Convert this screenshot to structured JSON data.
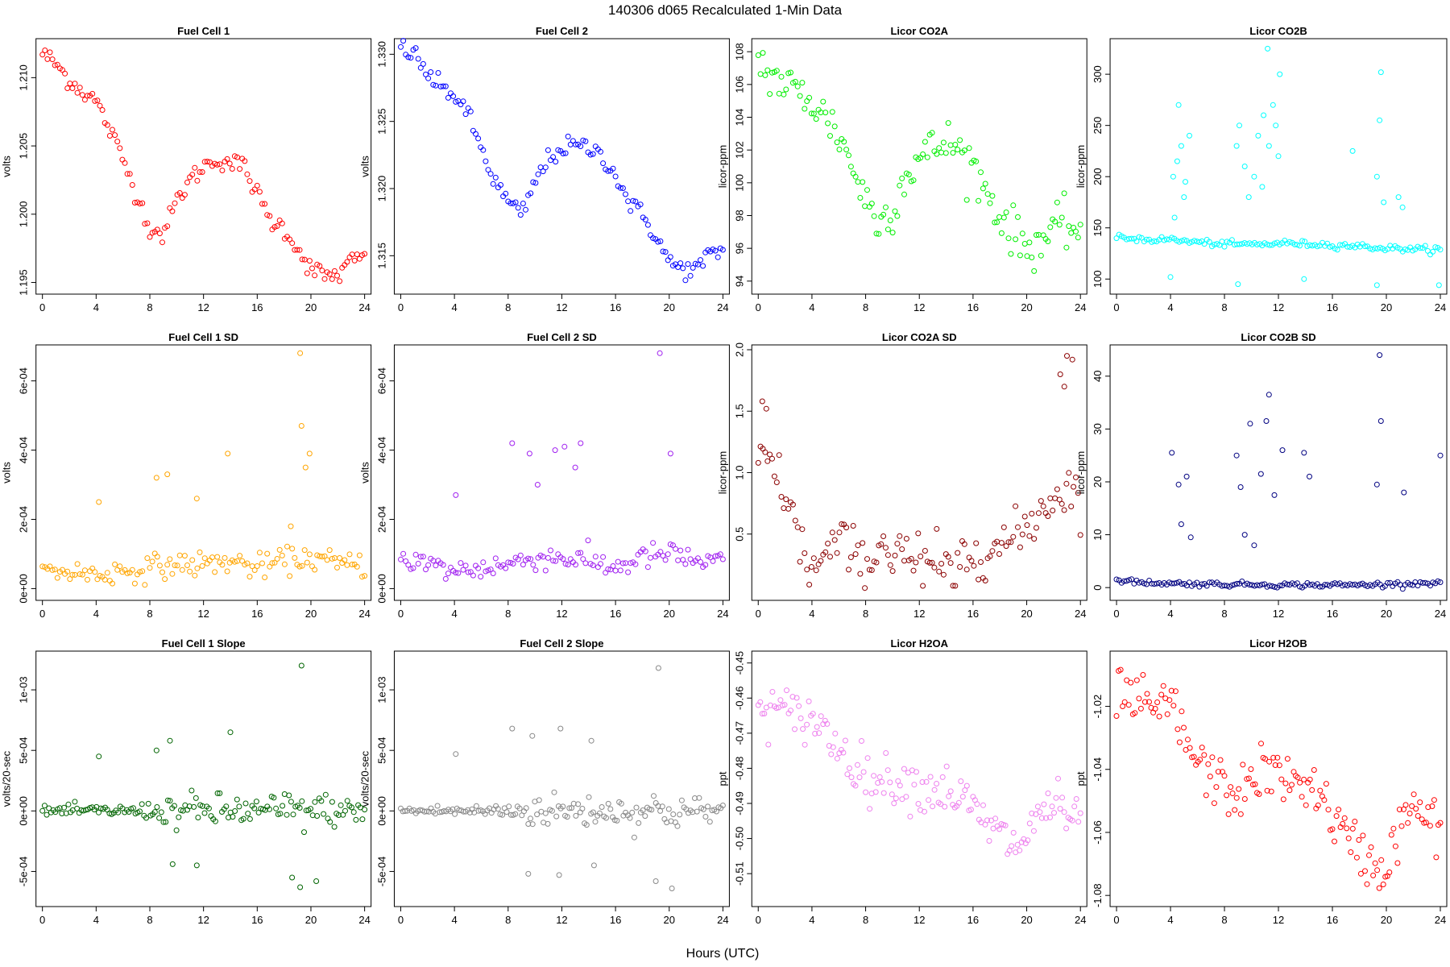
{
  "figure": {
    "title": "140306   d065   Recalculated 1-Min Data",
    "xlabel": "Hours (UTC)"
  },
  "chart_data": [
    {
      "type": "scatter",
      "title": "Fuel Cell 1",
      "ylabel": "volts",
      "xlim": [
        0,
        24
      ],
      "ylim": [
        1.1945,
        1.2125
      ],
      "yticks": [
        1.195,
        1.2,
        1.205,
        1.21
      ],
      "ytick_labels": [
        "1.195",
        "1.200",
        "1.205",
        "1.210"
      ],
      "color": "#ff0000",
      "x": [
        0,
        1,
        2,
        3,
        4,
        5,
        6,
        7,
        8,
        9,
        10,
        11,
        12,
        13,
        14,
        15,
        16,
        17,
        18,
        19,
        20,
        21,
        22,
        23,
        24
      ],
      "y": [
        1.2118,
        1.211,
        1.2098,
        1.209,
        1.2083,
        1.2062,
        1.204,
        1.2015,
        1.199,
        1.1985,
        1.201,
        1.2025,
        1.2035,
        1.204,
        1.2038,
        1.2035,
        1.2015,
        1.1995,
        1.199,
        1.1975,
        1.196,
        1.1955,
        1.1955,
        1.1965,
        1.197
      ],
      "spread": 0.0006,
      "n": 130
    },
    {
      "type": "scatter",
      "title": "Fuel Cell 2",
      "ylabel": "volts",
      "xlim": [
        0,
        24
      ],
      "ylim": [
        1.3125,
        1.3308
      ],
      "yticks": [
        1.315,
        1.32,
        1.325,
        1.33
      ],
      "ytick_labels": [
        "1.315",
        "1.320",
        "1.325",
        "1.330"
      ],
      "color": "#0000ff",
      "x": [
        0,
        1,
        2,
        3,
        4,
        5,
        6,
        7,
        8,
        9,
        10,
        11,
        12,
        13,
        14,
        15,
        16,
        17,
        18,
        19,
        20,
        21,
        22,
        23,
        24
      ],
      "y": [
        1.3305,
        1.33,
        1.3285,
        1.3275,
        1.327,
        1.3255,
        1.323,
        1.3205,
        1.319,
        1.318,
        1.3205,
        1.3222,
        1.323,
        1.3232,
        1.323,
        1.3225,
        1.321,
        1.319,
        1.318,
        1.3165,
        1.3145,
        1.314,
        1.314,
        1.315,
        1.3155
      ],
      "spread": 0.0006,
      "n": 130
    },
    {
      "type": "scatter",
      "title": "Licor CO2A",
      "ylabel": "licor-ppm",
      "xlim": [
        0,
        24
      ],
      "ylim": [
        93.5,
        108.5
      ],
      "yticks": [
        94,
        96,
        98,
        100,
        102,
        104,
        106,
        108
      ],
      "ytick_labels": [
        "94",
        "96",
        "98",
        "100",
        "102",
        "104",
        "106",
        "108"
      ],
      "color": "#00ee00",
      "x": [
        0,
        1,
        2,
        3,
        4,
        5,
        6,
        7,
        8,
        9,
        10,
        11,
        12,
        13,
        14,
        15,
        16,
        17,
        18,
        19,
        20,
        21,
        22,
        23,
        24
      ],
      "y": [
        107.5,
        106.5,
        106.0,
        105.5,
        105.0,
        104.0,
        103.0,
        101.0,
        99.0,
        97.5,
        98.5,
        100.5,
        101.5,
        102.0,
        102.5,
        102.0,
        101.0,
        99.5,
        98.0,
        97.0,
        96.0,
        96.5,
        97.0,
        97.5,
        97.0
      ],
      "spread": 1.2,
      "n": 140
    },
    {
      "type": "scatter",
      "title": "Licor CO2B",
      "ylabel": "licor-ppm",
      "xlim": [
        0,
        24
      ],
      "ylim": [
        90,
        330
      ],
      "yticks": [
        100,
        150,
        200,
        250,
        300
      ],
      "ytick_labels": [
        "100",
        "150",
        "200",
        "250",
        "300"
      ],
      "color": "#00ffff",
      "x": [
        0,
        1,
        2,
        3,
        4,
        5,
        6,
        7,
        8,
        9,
        10,
        11,
        12,
        13,
        14,
        15,
        16,
        17,
        18,
        19,
        20,
        21,
        22,
        23,
        24
      ],
      "y": [
        140,
        140,
        139,
        138,
        139,
        137,
        136,
        135,
        134,
        134,
        134,
        134,
        135,
        135,
        134,
        134,
        133,
        133,
        132,
        131,
        130,
        130,
        129,
        129,
        129
      ],
      "spread": 2.5,
      "n": 130,
      "outliers": [
        [
          4.2,
          200
        ],
        [
          4.5,
          215
        ],
        [
          4.8,
          230
        ],
        [
          5.1,
          195
        ],
        [
          5.4,
          240
        ],
        [
          4.6,
          270
        ],
        [
          5.0,
          180
        ],
        [
          4.3,
          160
        ],
        [
          8.9,
          230
        ],
        [
          9.1,
          250
        ],
        [
          9.5,
          210
        ],
        [
          10.2,
          200
        ],
        [
          10.5,
          240
        ],
        [
          10.9,
          260
        ],
        [
          11.3,
          230
        ],
        [
          11.6,
          270
        ],
        [
          12.0,
          220
        ],
        [
          11.2,
          325
        ],
        [
          11.8,
          250
        ],
        [
          12.1,
          300
        ],
        [
          9.8,
          180
        ],
        [
          10.8,
          190
        ],
        [
          17.5,
          225
        ],
        [
          19.3,
          200
        ],
        [
          19.5,
          255
        ],
        [
          19.6,
          302
        ],
        [
          19.8,
          175
        ],
        [
          20.9,
          180
        ],
        [
          21.2,
          170
        ],
        [
          4.0,
          102
        ],
        [
          9.0,
          95
        ],
        [
          13.9,
          100
        ],
        [
          19.3,
          94
        ],
        [
          23.9,
          94
        ]
      ]
    },
    {
      "type": "scatter",
      "title": "Fuel Cell 1 SD",
      "ylabel": "volts",
      "xlim": [
        0,
        24
      ],
      "ylim": [
        -2e-05,
        0.00069
      ],
      "yticks": [
        0,
        0.0002,
        0.0004,
        0.0006
      ],
      "ytick_labels": [
        "0e+00",
        "2e-04",
        "4e-04",
        "6e-04"
      ],
      "color": "#ffa500",
      "x": [
        0,
        2,
        4,
        6,
        8,
        10,
        12,
        14,
        16,
        18,
        20,
        22,
        24
      ],
      "y": [
        5e-05,
        5e-05,
        4e-05,
        5e-05,
        6e-05,
        7e-05,
        7e-05,
        8e-05,
        6e-05,
        8e-05,
        9e-05,
        7e-05,
        7e-05
      ],
      "spread": 3e-05,
      "n": 130,
      "outliers": [
        [
          4.2,
          0.00025
        ],
        [
          8.5,
          0.00032
        ],
        [
          9.3,
          0.00033
        ],
        [
          13.8,
          0.00039
        ],
        [
          19.2,
          0.00068
        ],
        [
          19.3,
          0.00047
        ],
        [
          19.9,
          0.00039
        ],
        [
          19.6,
          0.00035
        ],
        [
          11.5,
          0.00026
        ],
        [
          18.5,
          0.00018
        ]
      ]
    },
    {
      "type": "scatter",
      "title": "Fuel Cell 2 SD",
      "ylabel": "volts",
      "xlim": [
        0,
        24
      ],
      "ylim": [
        -2e-05,
        0.00069
      ],
      "yticks": [
        0,
        0.0002,
        0.0004,
        0.0006
      ],
      "ytick_labels": [
        "0e+00",
        "2e-04",
        "4e-04",
        "6e-04"
      ],
      "color": "#a020f0",
      "x": [
        0,
        2,
        4,
        6,
        8,
        10,
        12,
        14,
        16,
        18,
        20,
        22,
        24
      ],
      "y": [
        9e-05,
        7e-05,
        5e-05,
        6e-05,
        7e-05,
        9e-05,
        9e-05,
        8e-05,
        6e-05,
        9e-05,
        0.0001,
        8e-05,
        7e-05
      ],
      "spread": 3e-05,
      "n": 130,
      "outliers": [
        [
          4.1,
          0.00027
        ],
        [
          8.3,
          0.00042
        ],
        [
          9.6,
          0.00039
        ],
        [
          11.5,
          0.0004
        ],
        [
          12.2,
          0.00041
        ],
        [
          13.4,
          0.00042
        ],
        [
          13.0,
          0.00035
        ],
        [
          19.3,
          0.00068
        ],
        [
          20.1,
          0.00039
        ],
        [
          10.2,
          0.0003
        ]
      ]
    },
    {
      "type": "scatter",
      "title": "Licor CO2A SD",
      "ylabel": "licor-ppm",
      "xlim": [
        0,
        24
      ],
      "ylim": [
        0.0,
        2.0
      ],
      "yticks": [
        0.5,
        1.0,
        1.5,
        2.0
      ],
      "ytick_labels": [
        "0.5",
        "1.0",
        "1.5",
        "2.0"
      ],
      "color": "#8b0000",
      "x": [
        0,
        1,
        2,
        3,
        4,
        5,
        6,
        7,
        8,
        9,
        10,
        11,
        12,
        13,
        14,
        15,
        16,
        17,
        18,
        19,
        20,
        21,
        22,
        23,
        24
      ],
      "y": [
        1.15,
        1.05,
        0.85,
        0.45,
        0.2,
        0.3,
        0.45,
        0.35,
        0.2,
        0.3,
        0.35,
        0.3,
        0.35,
        0.3,
        0.25,
        0.3,
        0.35,
        0.4,
        0.4,
        0.45,
        0.55,
        0.7,
        0.8,
        0.9,
        0.8
      ],
      "spread": 0.18,
      "n": 140,
      "outliers": [
        [
          0.3,
          1.58
        ],
        [
          0.6,
          1.52
        ],
        [
          23.0,
          1.95
        ],
        [
          23.4,
          1.92
        ],
        [
          22.5,
          1.8
        ],
        [
          22.8,
          1.7
        ]
      ]
    },
    {
      "type": "scatter",
      "title": "Licor CO2B SD",
      "ylabel": "licor-ppm",
      "xlim": [
        0,
        24
      ],
      "ylim": [
        -1.5,
        45
      ],
      "yticks": [
        0,
        10,
        20,
        30,
        40
      ],
      "ytick_labels": [
        "0",
        "10",
        "20",
        "30",
        "40"
      ],
      "color": "#000080",
      "x": [
        0,
        2,
        4,
        6,
        8,
        10,
        12,
        14,
        16,
        18,
        20,
        22,
        24
      ],
      "y": [
        1.3,
        1.0,
        0.8,
        0.7,
        0.6,
        0.6,
        0.5,
        0.5,
        0.5,
        0.5,
        0.6,
        0.8,
        1.0
      ],
      "spread": 0.4,
      "n": 130,
      "outliers": [
        [
          4.1,
          25.5
        ],
        [
          4.6,
          19.5
        ],
        [
          5.2,
          21.0
        ],
        [
          4.8,
          12.0
        ],
        [
          5.5,
          9.5
        ],
        [
          8.9,
          25.0
        ],
        [
          9.2,
          19.0
        ],
        [
          9.9,
          31.0
        ],
        [
          10.7,
          21.5
        ],
        [
          11.3,
          36.5
        ],
        [
          11.1,
          31.5
        ],
        [
          12.3,
          26.0
        ],
        [
          11.7,
          17.5
        ],
        [
          13.9,
          25.5
        ],
        [
          14.3,
          21.0
        ],
        [
          19.5,
          44.0
        ],
        [
          19.6,
          31.5
        ],
        [
          19.3,
          19.5
        ],
        [
          21.3,
          18.0
        ],
        [
          24.0,
          25.0
        ],
        [
          9.5,
          10.0
        ],
        [
          10.2,
          8.0
        ]
      ]
    },
    {
      "type": "scatter",
      "title": "Fuel Cell 1 Slope",
      "ylabel": "volts/20-sec",
      "xlim": [
        0,
        24
      ],
      "ylim": [
        -0.00075,
        0.00128
      ],
      "yticks": [
        -0.0005,
        0,
        0.0005,
        0.001
      ],
      "ytick_labels": [
        "-5e-04",
        "0e+00",
        "5e-04",
        "1e-03"
      ],
      "color": "#006400",
      "x": [
        0,
        2,
        4,
        6,
        8,
        10,
        12,
        14,
        16,
        18,
        20,
        22,
        24
      ],
      "y": [
        0,
        0,
        0,
        0,
        0,
        0,
        0,
        0,
        0,
        0,
        0,
        0,
        0
      ],
      "spread": [
        3e-05,
        4e-05,
        4e-05,
        4e-05,
        6e-05,
        0.00012,
        0.00012,
        0.00012,
        0.0001,
        0.00014,
        0.00014,
        0.0001,
        6e-05
      ],
      "n": 150,
      "outliers": [
        [
          4.2,
          0.00045
        ],
        [
          8.5,
          0.0005
        ],
        [
          9.5,
          0.00058
        ],
        [
          14.0,
          0.00065
        ],
        [
          19.3,
          0.0012
        ],
        [
          9.7,
          -0.00044
        ],
        [
          11.5,
          -0.00045
        ],
        [
          18.6,
          -0.00055
        ],
        [
          19.2,
          -0.00063
        ],
        [
          20.4,
          -0.00058
        ]
      ]
    },
    {
      "type": "scatter",
      "title": "Fuel Cell 2 Slope",
      "ylabel": "volts/20-sec",
      "xlim": [
        0,
        24
      ],
      "ylim": [
        -0.00075,
        0.00128
      ],
      "yticks": [
        -0.0005,
        0,
        0.0005,
        0.001
      ],
      "ytick_labels": [
        "-5e-04",
        "0e+00",
        "5e-04",
        "1e-03"
      ],
      "color": "#888888",
      "x": [
        0,
        2,
        4,
        6,
        8,
        10,
        12,
        14,
        16,
        18,
        20,
        22,
        24
      ],
      "y": [
        0,
        0,
        0,
        0,
        0,
        0,
        0,
        0,
        0,
        0,
        0,
        0,
        0
      ],
      "spread": [
        3e-05,
        4e-05,
        4e-05,
        4e-05,
        6e-05,
        0.00012,
        0.00012,
        0.00012,
        0.0001,
        0.00014,
        0.00014,
        0.0001,
        6e-05
      ],
      "n": 150,
      "outliers": [
        [
          4.1,
          0.00047
        ],
        [
          8.3,
          0.00068
        ],
        [
          9.8,
          0.00062
        ],
        [
          11.9,
          0.00068
        ],
        [
          14.2,
          0.00058
        ],
        [
          19.2,
          0.00118
        ],
        [
          9.5,
          -0.00052
        ],
        [
          11.8,
          -0.00053
        ],
        [
          19.0,
          -0.00058
        ],
        [
          20.2,
          -0.00064
        ],
        [
          14.4,
          -0.00045
        ]
      ]
    },
    {
      "type": "scatter",
      "title": "Licor H2OA",
      "ylabel": "ppt",
      "xlim": [
        0,
        24
      ],
      "ylim": [
        -0.518,
        -0.448
      ],
      "yticks": [
        -0.51,
        -0.5,
        -0.49,
        -0.48,
        -0.47,
        -0.46,
        -0.45
      ],
      "ytick_labels": [
        "-0.51",
        "-0.50",
        "-0.49",
        "-0.48",
        "-0.47",
        "-0.46",
        "-0.45"
      ],
      "color": "#ee82ee",
      "x": [
        0,
        1,
        2,
        3,
        4,
        5,
        6,
        7,
        8,
        9,
        10,
        11,
        12,
        13,
        14,
        15,
        16,
        17,
        18,
        19,
        20,
        21,
        22,
        23,
        24
      ],
      "y": [
        -0.462,
        -0.463,
        -0.464,
        -0.466,
        -0.465,
        -0.47,
        -0.474,
        -0.478,
        -0.482,
        -0.484,
        -0.483,
        -0.484,
        -0.485,
        -0.486,
        -0.486,
        -0.488,
        -0.492,
        -0.496,
        -0.499,
        -0.502,
        -0.5,
        -0.492,
        -0.49,
        -0.494,
        -0.497
      ],
      "spread": 0.006,
      "n": 160
    },
    {
      "type": "scatter",
      "title": "Licor H2OB",
      "ylabel": "ppt",
      "xlim": [
        0,
        24
      ],
      "ylim": [
        -1.082,
        -1.004
      ],
      "yticks": [
        -1.08,
        -1.06,
        -1.04,
        -1.02
      ],
      "ytick_labels": [
        "-1.08",
        "-1.06",
        "-1.04",
        "-1.02"
      ],
      "color": "#ff0000",
      "x": [
        0,
        1,
        2,
        3,
        4,
        5,
        6,
        7,
        8,
        9,
        10,
        11,
        12,
        13,
        14,
        15,
        16,
        17,
        18,
        19,
        20,
        21,
        22,
        23,
        24
      ],
      "y": [
        -1.015,
        -1.018,
        -1.02,
        -1.022,
        -1.018,
        -1.03,
        -1.038,
        -1.042,
        -1.046,
        -1.048,
        -1.044,
        -1.04,
        -1.042,
        -1.045,
        -1.043,
        -1.048,
        -1.055,
        -1.062,
        -1.066,
        -1.07,
        -1.072,
        -1.058,
        -1.052,
        -1.056,
        -1.06
      ],
      "spread": 0.007,
      "n": 160
    }
  ],
  "xticks": [
    0,
    4,
    8,
    12,
    16,
    20,
    24
  ]
}
